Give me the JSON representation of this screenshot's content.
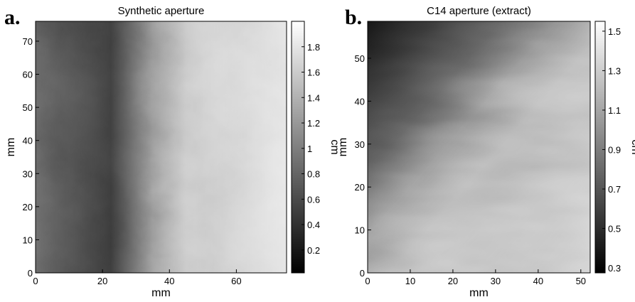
{
  "chart_data": [
    {
      "type": "heatmap",
      "panel_label": "a.",
      "title": "Synthetic aperture",
      "xlabel": "mm",
      "ylabel": "mm",
      "xlim": [
        0,
        75
      ],
      "xticks": [
        0,
        20,
        40,
        60
      ],
      "ylim": [
        0,
        76
      ],
      "yticks": [
        0,
        10,
        20,
        30,
        40,
        50,
        60,
        70
      ],
      "colorbar": {
        "label": "cm",
        "lim": [
          0.02,
          2.0
        ],
        "ticks": [
          0.2,
          0.4,
          0.6,
          0.8,
          1,
          1.2,
          1.4,
          1.6,
          1.8
        ]
      }
    },
    {
      "type": "heatmap",
      "panel_label": "b.",
      "title": "C14 aperture (extract)",
      "xlabel": "mm",
      "ylabel": "mm",
      "xlim": [
        0,
        52.2
      ],
      "xticks": [
        0,
        10,
        20,
        30,
        40,
        50
      ],
      "ylim": [
        0,
        58.6
      ],
      "yticks": [
        0,
        10,
        20,
        30,
        40,
        50
      ],
      "colorbar": {
        "label": "cm",
        "lim": [
          0.275,
          1.55
        ],
        "ticks": [
          0.3,
          0.5,
          0.7,
          0.9,
          1.1,
          1.3,
          1.5
        ]
      }
    }
  ]
}
